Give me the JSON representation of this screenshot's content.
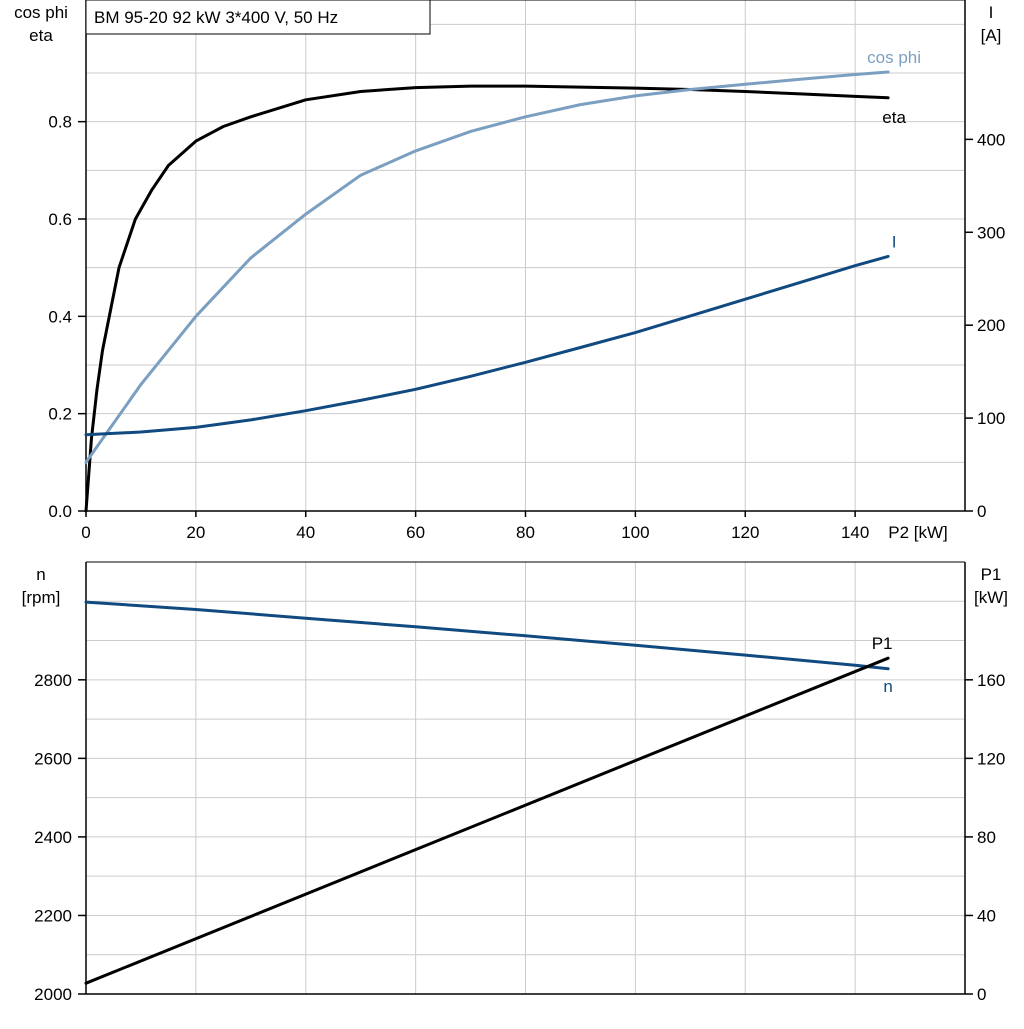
{
  "chart_data": [
    {
      "type": "line",
      "title": "BM 95-20   92 kW   3*400 V, 50 Hz",
      "xlabel": "P2 [kW]",
      "xlim": [
        0,
        160
      ],
      "xticks": [
        "0",
        "20",
        "40",
        "60",
        "80",
        "100",
        "120",
        "140"
      ],
      "ylabel_left": [
        "cos phi",
        "eta"
      ],
      "ylim_left": [
        0,
        1.05
      ],
      "yticks_left": [
        "0.0",
        "0.2",
        "0.4",
        "0.6",
        "0.8"
      ],
      "ylabel_right": [
        "I",
        "[A]"
      ],
      "ylim_right": [
        0,
        550
      ],
      "yticks_right": [
        "0",
        "100",
        "200",
        "300",
        "400"
      ],
      "grid": true,
      "series": [
        {
          "name": "eta",
          "axis": "left",
          "color": "#000000",
          "x": [
            0,
            1,
            2,
            3,
            6,
            9,
            12,
            15,
            20,
            25,
            30,
            40,
            50,
            60,
            70,
            80,
            90,
            100,
            110,
            120,
            130,
            140,
            146
          ],
          "y": [
            0.0,
            0.15,
            0.25,
            0.33,
            0.5,
            0.6,
            0.66,
            0.71,
            0.76,
            0.79,
            0.81,
            0.845,
            0.862,
            0.87,
            0.873,
            0.873,
            0.871,
            0.869,
            0.866,
            0.862,
            0.857,
            0.852,
            0.849
          ]
        },
        {
          "name": "cos phi",
          "axis": "left",
          "color": "#7b9fc0",
          "x": [
            0,
            5,
            10,
            15,
            20,
            30,
            40,
            50,
            60,
            70,
            80,
            90,
            100,
            110,
            120,
            130,
            140,
            146
          ],
          "y": [
            0.1,
            0.18,
            0.26,
            0.33,
            0.4,
            0.52,
            0.61,
            0.69,
            0.74,
            0.78,
            0.81,
            0.835,
            0.853,
            0.866,
            0.877,
            0.887,
            0.897,
            0.902
          ]
        },
        {
          "name": "I",
          "axis": "right",
          "color": "#114a80",
          "x": [
            0,
            10,
            20,
            30,
            40,
            50,
            60,
            70,
            80,
            90,
            100,
            110,
            120,
            130,
            140,
            146
          ],
          "y": [
            82,
            85,
            90,
            98,
            108,
            119,
            131,
            145,
            160,
            176,
            192,
            210,
            228,
            246,
            264,
            274
          ]
        }
      ]
    },
    {
      "type": "line",
      "xlim": [
        0,
        160
      ],
      "ylabel_left": [
        "n",
        "[rpm]"
      ],
      "ylim_left": [
        2000,
        3100
      ],
      "yticks_left": [
        "2000",
        "2200",
        "2400",
        "2600",
        "2800"
      ],
      "ylabel_right": [
        "P1",
        "[kW]"
      ],
      "ylim_right": [
        0,
        220
      ],
      "yticks_right": [
        "0",
        "40",
        "80",
        "120",
        "160"
      ],
      "grid": true,
      "series": [
        {
          "name": "n",
          "axis": "left",
          "color": "#114a80",
          "x": [
            0,
            20,
            40,
            60,
            80,
            100,
            120,
            140,
            146
          ],
          "y": [
            2998,
            2979,
            2957,
            2935,
            2912,
            2888,
            2863,
            2837,
            2828
          ]
        },
        {
          "name": "P1",
          "axis": "right",
          "color": "#000000",
          "x": [
            0,
            146
          ],
          "y": [
            5.5,
            171
          ]
        }
      ]
    }
  ]
}
